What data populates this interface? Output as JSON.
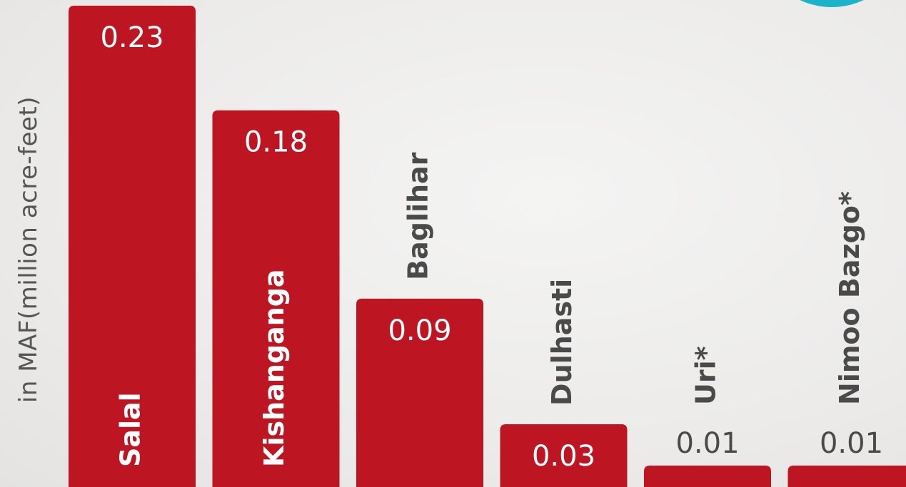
{
  "chart_data": {
    "type": "bar",
    "ylabel": "in MAF(million acre-feet)",
    "categories": [
      "Salal",
      "Kishanganga",
      "Baglihar",
      "Dulhasti",
      "Uri*",
      "Nimoo Bazgo*"
    ],
    "values": [
      0.23,
      0.18,
      0.09,
      0.03,
      0.01,
      0.01
    ],
    "value_labels": [
      "0.23",
      "0.18",
      "0.09",
      "0.03",
      "0.01",
      "0.01"
    ],
    "ylim": [
      0,
      0.23
    ],
    "grid": false,
    "legend": "none"
  },
  "colors": {
    "bar": "#bd1622",
    "label_inside": "#ffffff",
    "label_outside": "#4a4a4a",
    "accent": "#1bb3c9"
  }
}
